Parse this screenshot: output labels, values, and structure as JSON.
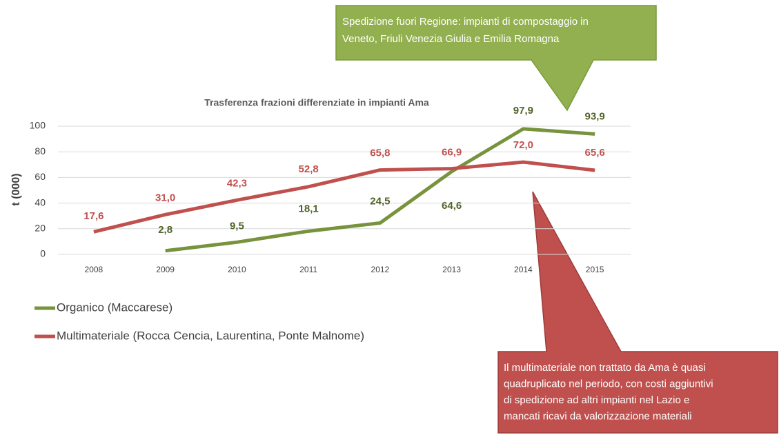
{
  "chart_data": {
    "type": "line",
    "title": "Trasferenza frazioni differenziate in impianti Ama",
    "y_label": "t (000)",
    "categories": [
      "2008",
      "2009",
      "2010",
      "2011",
      "2012",
      "2013",
      "2014",
      "2015"
    ],
    "series": [
      {
        "name": "Organico (Maccarese)",
        "color": "#77933c",
        "label_color": "#4f6228",
        "values": [
          null,
          2.8,
          9.5,
          18.1,
          24.5,
          64.6,
          97.9,
          93.9
        ],
        "value_labels": [
          null,
          "2,8",
          "9,5",
          "18,1",
          "24,5",
          "64,6",
          "97,9",
          "93,9"
        ]
      },
      {
        "name": "Multimateriale (Rocca Cencia, Laurentina, Ponte Malnome)",
        "color": "#c0504d",
        "label_color": "#c0504d",
        "values": [
          17.6,
          31.0,
          42.3,
          52.8,
          65.8,
          66.9,
          72.0,
          65.6
        ],
        "value_labels": [
          "17,6",
          "31,0",
          "42,3",
          "52,8",
          "65,8",
          "66,9",
          "72,0",
          "65,6"
        ]
      }
    ],
    "ylim": [
      0,
      100
    ],
    "yticks": [
      0,
      20,
      40,
      60,
      80,
      100
    ],
    "grid": true,
    "annotations": [
      [
        "Spedizione fuori Regione: impianti di compostaggio in",
        "Veneto, Friuli Venezia Giulia e Emilia Romagna"
      ],
      [
        "Il multimateriale non trattato da Ama è quasi",
        "quadruplicato nel periodo, con costi aggiuntivi",
        "di spedizione ad altri impianti nel Lazio e",
        "mancati ricavi da valorizzazione materiali"
      ]
    ]
  }
}
